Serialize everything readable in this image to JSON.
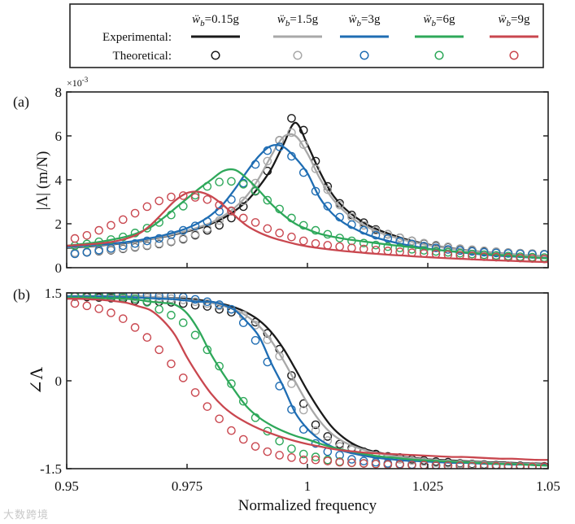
{
  "legend": {
    "row_experimental": "Experimental:",
    "row_theoretical": "Theoretical:",
    "entries": [
      {
        "symbol": "ẅ",
        "sub": "b",
        "value": "=0.15g",
        "color": "#1a1a1a"
      },
      {
        "symbol": "ẅ",
        "sub": "b",
        "value": "=1.5g",
        "color": "#a8a8a8"
      },
      {
        "symbol": "ẅ",
        "sub": "b",
        "value": "=3g",
        "color": "#1f6db3"
      },
      {
        "symbol": "ẅ",
        "sub": "b",
        "value": "=6g",
        "color": "#2ea85a"
      },
      {
        "symbol": "ẅ",
        "sub": "b",
        "value": "=9g",
        "color": "#c9474f"
      }
    ]
  },
  "watermark": "大数跨境",
  "chart_data": [
    {
      "type": "line",
      "panel_label": "(a)",
      "ylabel": "|Λ| (m/N)",
      "yscale_label": "×10",
      "yscale_exp": "-3",
      "xlim": [
        0.95,
        1.05
      ],
      "ylim": [
        0,
        8
      ],
      "yticks": [
        "0",
        "2",
        "4",
        "6",
        "8"
      ],
      "ytick_values": [
        0,
        2,
        4,
        6,
        8
      ],
      "xticks": [
        0.95,
        0.975,
        1,
        1.025,
        1.05
      ],
      "line_x": {
        "start": 0.95,
        "step": 0.0025,
        "count": 41
      },
      "marker_x": {
        "start": 0.9517,
        "step": 0.0025,
        "count": 40
      },
      "series": [
        {
          "name": "ẅb=0.15g",
          "experimental": [
            0.9,
            0.93,
            0.97,
            1.02,
            1.07,
            1.13,
            1.2,
            1.3,
            1.4,
            1.52,
            1.65,
            1.8,
            2.0,
            2.25,
            2.6,
            3.05,
            3.7,
            4.5,
            5.6,
            6.6,
            5.6,
            4.4,
            3.4,
            2.75,
            2.3,
            1.95,
            1.7,
            1.5,
            1.32,
            1.18,
            1.06,
            0.96,
            0.88,
            0.81,
            0.75,
            0.7,
            0.65,
            0.61,
            0.57,
            0.54,
            0.5
          ],
          "theoretical": [
            0.65,
            0.7,
            0.75,
            0.8,
            0.86,
            0.93,
            1.0,
            1.08,
            1.18,
            1.3,
            1.48,
            1.7,
            1.93,
            2.26,
            2.78,
            3.48,
            4.4,
            5.8,
            6.8,
            6.26,
            4.85,
            3.7,
            2.93,
            2.4,
            2.05,
            1.74,
            1.52,
            1.36,
            1.22,
            1.1,
            1.0,
            0.93,
            0.85,
            0.8,
            0.75,
            0.72,
            0.69,
            0.66,
            0.64,
            0.62
          ]
        },
        {
          "name": "ẅb=1.5g",
          "experimental": [
            0.92,
            0.95,
            0.99,
            1.04,
            1.09,
            1.15,
            1.22,
            1.31,
            1.42,
            1.54,
            1.68,
            1.85,
            2.05,
            2.35,
            2.75,
            3.3,
            4.1,
            5.1,
            5.95,
            6.0,
            5.2,
            4.1,
            3.2,
            2.6,
            2.15,
            1.85,
            1.6,
            1.42,
            1.27,
            1.14,
            1.03,
            0.94,
            0.86,
            0.8,
            0.74,
            0.69,
            0.64,
            0.6,
            0.57,
            0.53,
            0.5
          ],
          "theoretical": [
            0.68,
            0.72,
            0.77,
            0.82,
            0.88,
            0.95,
            1.02,
            1.1,
            1.2,
            1.33,
            1.52,
            1.78,
            2.15,
            2.56,
            3.04,
            3.85,
            4.85,
            5.8,
            6.15,
            5.6,
            4.5,
            3.55,
            2.85,
            2.3,
            1.93,
            1.7,
            1.52,
            1.36,
            1.22,
            1.12,
            1.03,
            0.95,
            0.87,
            0.82,
            0.77,
            0.73,
            0.69,
            0.66,
            0.64,
            0.62
          ]
        },
        {
          "name": "ẅb=3g",
          "experimental": [
            0.95,
            0.98,
            1.02,
            1.06,
            1.11,
            1.17,
            1.25,
            1.35,
            1.47,
            1.62,
            1.8,
            2.05,
            2.4,
            2.9,
            3.6,
            4.4,
            5.1,
            5.55,
            5.5,
            5.0,
            4.3,
            3.2,
            2.5,
            2.05,
            1.75,
            1.5,
            1.32,
            1.18,
            1.06,
            0.96,
            0.87,
            0.8,
            0.74,
            0.68,
            0.63,
            0.58,
            0.54,
            0.51,
            0.48,
            0.45,
            0.43
          ],
          "theoretical": [
            0.63,
            0.7,
            0.8,
            0.88,
            1.0,
            1.1,
            1.22,
            1.33,
            1.5,
            1.7,
            1.9,
            2.1,
            2.56,
            3.1,
            3.85,
            4.7,
            5.33,
            5.5,
            5.07,
            4.33,
            3.48,
            2.8,
            2.3,
            1.96,
            1.7,
            1.48,
            1.33,
            1.2,
            1.08,
            0.98,
            0.9,
            0.83,
            0.78,
            0.74,
            0.7,
            0.67,
            0.65,
            0.63,
            0.61,
            0.6
          ]
        },
        {
          "name": "ẅb=6g",
          "experimental": [
            1.0,
            1.06,
            1.12,
            1.2,
            1.3,
            1.42,
            1.6,
            1.85,
            2.25,
            2.7,
            3.15,
            3.6,
            4.0,
            4.4,
            4.45,
            4.05,
            3.5,
            2.9,
            2.4,
            2.0,
            1.75,
            1.55,
            1.42,
            1.32,
            1.24,
            1.17,
            1.1,
            1.03,
            0.97,
            0.91,
            0.85,
            0.8,
            0.75,
            0.7,
            0.66,
            0.62,
            0.58,
            0.54,
            0.5,
            0.46,
            0.42
          ],
          "theoretical": [
            1.0,
            1.08,
            1.18,
            1.28,
            1.4,
            1.58,
            1.8,
            2.06,
            2.4,
            2.8,
            3.3,
            3.7,
            3.9,
            3.93,
            3.8,
            3.5,
            3.07,
            2.67,
            2.26,
            1.93,
            1.7,
            1.52,
            1.35,
            1.22,
            1.12,
            1.03,
            0.96,
            0.9,
            0.84,
            0.79,
            0.74,
            0.7,
            0.66,
            0.62,
            0.59,
            0.56,
            0.53,
            0.5,
            0.48,
            0.46
          ]
        },
        {
          "name": "ẅb=9g",
          "experimental": [
            1.0,
            1.03,
            1.07,
            1.12,
            1.2,
            1.33,
            1.55,
            1.95,
            2.5,
            3.05,
            3.4,
            3.45,
            3.25,
            2.85,
            2.35,
            1.9,
            1.6,
            1.38,
            1.22,
            1.08,
            0.97,
            0.89,
            0.82,
            0.76,
            0.71,
            0.66,
            0.62,
            0.58,
            0.55,
            0.51,
            0.48,
            0.45,
            0.42,
            0.4,
            0.37,
            0.35,
            0.33,
            0.31,
            0.29,
            0.27,
            0.25
          ],
          "theoretical": [
            1.33,
            1.47,
            1.7,
            1.93,
            2.19,
            2.48,
            2.78,
            3.04,
            3.22,
            3.28,
            3.2,
            3.1,
            2.85,
            2.59,
            2.26,
            2.06,
            1.78,
            1.58,
            1.4,
            1.22,
            1.1,
            1.02,
            0.96,
            0.9,
            0.85,
            0.8,
            0.76,
            0.72,
            0.68,
            0.65,
            0.62,
            0.59,
            0.56,
            0.53,
            0.5,
            0.48,
            0.46,
            0.44,
            0.42,
            0.4
          ]
        }
      ]
    },
    {
      "type": "line",
      "panel_label": "(b)",
      "ylabel": "∠Λ",
      "xlabel": "Normalized frequency",
      "xlim": [
        0.95,
        1.05
      ],
      "ylim": [
        -1.5,
        1.5
      ],
      "yticks": [
        "-1.5",
        "0",
        "1.5"
      ],
      "ytick_values": [
        -1.5,
        0,
        1.5
      ],
      "xticks": [
        "0.95",
        "0.975",
        "1",
        "1.025",
        "1.05"
      ],
      "xtick_values": [
        0.95,
        0.975,
        1,
        1.025,
        1.05
      ],
      "line_x": {
        "start": 0.95,
        "step": 0.0025,
        "count": 41
      },
      "marker_x": {
        "start": 0.9517,
        "step": 0.0025,
        "count": 40
      },
      "series": [
        {
          "name": "ẅb=0.15g",
          "experimental": [
            1.45,
            1.45,
            1.45,
            1.45,
            1.45,
            1.45,
            1.44,
            1.43,
            1.42,
            1.41,
            1.4,
            1.38,
            1.35,
            1.31,
            1.25,
            1.16,
            1.03,
            0.83,
            0.55,
            0.2,
            -0.17,
            -0.5,
            -0.78,
            -0.97,
            -1.1,
            -1.18,
            -1.23,
            -1.27,
            -1.3,
            -1.32,
            -1.34,
            -1.35,
            -1.36,
            -1.37,
            -1.38,
            -1.39,
            -1.39,
            -1.4,
            -1.41,
            -1.41,
            -1.42
          ],
          "theoretical": [
            1.44,
            1.43,
            1.42,
            1.41,
            1.4,
            1.37,
            1.35,
            1.35,
            1.34,
            1.32,
            1.29,
            1.27,
            1.22,
            1.17,
            1.12,
            1.0,
            0.81,
            0.54,
            0.09,
            -0.39,
            -0.75,
            -0.95,
            -1.08,
            -1.15,
            -1.21,
            -1.25,
            -1.29,
            -1.31,
            -1.34,
            -1.36,
            -1.38,
            -1.39,
            -1.41,
            -1.42,
            -1.43,
            -1.44,
            -1.45,
            -1.45,
            -1.46,
            -1.46
          ]
        },
        {
          "name": "ẅb=1.5g",
          "experimental": [
            1.45,
            1.45,
            1.45,
            1.45,
            1.45,
            1.45,
            1.44,
            1.43,
            1.42,
            1.4,
            1.38,
            1.36,
            1.33,
            1.28,
            1.21,
            1.1,
            0.93,
            0.68,
            0.35,
            -0.02,
            -0.38,
            -0.68,
            -0.9,
            -1.04,
            -1.13,
            -1.2,
            -1.24,
            -1.28,
            -1.31,
            -1.33,
            -1.35,
            -1.36,
            -1.37,
            -1.38,
            -1.39,
            -1.4,
            -1.4,
            -1.41,
            -1.42,
            -1.42,
            -1.43
          ],
          "theoretical": [
            1.45,
            1.45,
            1.45,
            1.44,
            1.44,
            1.43,
            1.42,
            1.41,
            1.4,
            1.38,
            1.35,
            1.32,
            1.28,
            1.22,
            1.12,
            0.95,
            0.7,
            0.42,
            -0.05,
            -0.5,
            -0.85,
            -1.02,
            -1.12,
            -1.18,
            -1.23,
            -1.28,
            -1.31,
            -1.34,
            -1.36,
            -1.38,
            -1.4,
            -1.41,
            -1.42,
            -1.43,
            -1.44,
            -1.45,
            -1.45,
            -1.46,
            -1.46,
            -1.47
          ]
        },
        {
          "name": "ẅb=3g",
          "experimental": [
            1.44,
            1.44,
            1.44,
            1.44,
            1.43,
            1.43,
            1.42,
            1.41,
            1.4,
            1.39,
            1.37,
            1.35,
            1.35,
            1.3,
            1.2,
            1.0,
            0.75,
            0.3,
            -0.1,
            -0.55,
            -0.82,
            -1.0,
            -1.12,
            -1.2,
            -1.25,
            -1.29,
            -1.32,
            -1.34,
            -1.36,
            -1.37,
            -1.38,
            -1.39,
            -1.4,
            -1.4,
            -1.41,
            -1.42,
            -1.42,
            -1.43,
            -1.43,
            -1.44,
            -1.44
          ],
          "theoretical": [
            1.46,
            1.46,
            1.46,
            1.46,
            1.46,
            1.46,
            1.46,
            1.45,
            1.45,
            1.43,
            1.39,
            1.35,
            1.3,
            1.22,
            0.99,
            0.69,
            0.32,
            -0.09,
            -0.49,
            -0.83,
            -1.07,
            -1.21,
            -1.27,
            -1.34,
            -1.37,
            -1.39,
            -1.41,
            -1.42,
            -1.43,
            -1.44,
            -1.44,
            -1.45,
            -1.45,
            -1.46,
            -1.46,
            -1.46,
            -1.47,
            -1.47,
            -1.47,
            -1.48
          ]
        },
        {
          "name": "ẅb=6g",
          "experimental": [
            1.42,
            1.42,
            1.42,
            1.41,
            1.41,
            1.4,
            1.38,
            1.35,
            1.33,
            1.3,
            1.15,
            0.85,
            0.45,
            0.12,
            -0.18,
            -0.45,
            -0.63,
            -0.76,
            -0.86,
            -0.94,
            -1.0,
            -1.07,
            -1.13,
            -1.18,
            -1.22,
            -1.26,
            -1.29,
            -1.31,
            -1.33,
            -1.35,
            -1.36,
            -1.37,
            -1.38,
            -1.39,
            -1.4,
            -1.41,
            -1.42,
            -1.42,
            -1.43,
            -1.44,
            -1.45
          ],
          "theoretical": [
            1.45,
            1.45,
            1.44,
            1.43,
            1.42,
            1.4,
            1.34,
            1.22,
            1.12,
            0.99,
            0.78,
            0.53,
            0.25,
            -0.05,
            -0.35,
            -0.63,
            -0.86,
            -1.03,
            -1.16,
            -1.25,
            -1.3,
            -1.35,
            -1.38,
            -1.4,
            -1.41,
            -1.42,
            -1.43,
            -1.43,
            -1.44,
            -1.44,
            -1.45,
            -1.45,
            -1.45,
            -1.46,
            -1.46,
            -1.46,
            -1.46,
            -1.47,
            -1.47,
            -1.47
          ]
        },
        {
          "name": "ẅb=9g",
          "experimental": [
            1.4,
            1.4,
            1.39,
            1.38,
            1.36,
            1.33,
            1.27,
            1.2,
            1.03,
            0.78,
            0.4,
            0.07,
            -0.22,
            -0.44,
            -0.6,
            -0.72,
            -0.82,
            -0.9,
            -0.97,
            -1.03,
            -1.08,
            -1.12,
            -1.16,
            -1.19,
            -1.21,
            -1.23,
            -1.24,
            -1.25,
            -1.26,
            -1.27,
            -1.28,
            -1.29,
            -1.3,
            -1.3,
            -1.31,
            -1.32,
            -1.33,
            -1.33,
            -1.34,
            -1.35,
            -1.35
          ],
          "theoretical": [
            1.32,
            1.28,
            1.23,
            1.16,
            1.06,
            0.91,
            0.74,
            0.53,
            0.29,
            0.05,
            -0.2,
            -0.44,
            -0.65,
            -0.85,
            -1.0,
            -1.12,
            -1.21,
            -1.27,
            -1.31,
            -1.35,
            -1.35,
            -1.37,
            -1.39,
            -1.4,
            -1.41,
            -1.42,
            -1.43,
            -1.43,
            -1.44,
            -1.44,
            -1.45,
            -1.45,
            -1.45,
            -1.46,
            -1.46,
            -1.46,
            -1.46,
            -1.47,
            -1.47,
            -1.47
          ]
        }
      ]
    }
  ]
}
